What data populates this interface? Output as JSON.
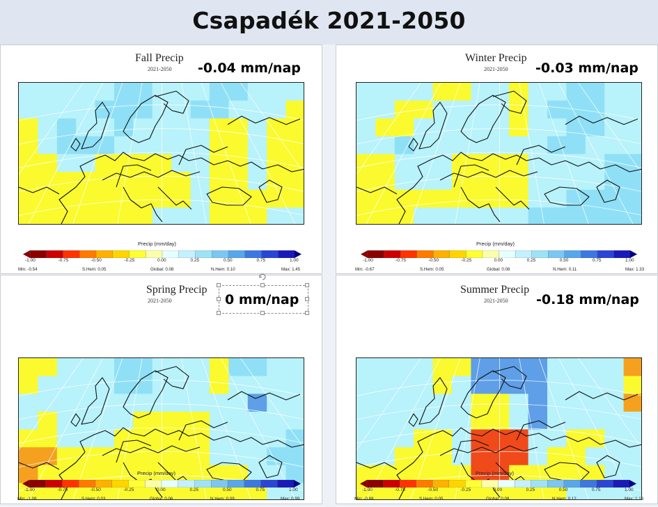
{
  "title": "Csapadék 2021-2050",
  "colorbar": {
    "title": "Precip (mm/day)",
    "ticks": [
      "-1.00",
      "-0.75",
      "-0.50",
      "-0.25",
      "0.00",
      "0.25",
      "0.50",
      "0.75",
      "1.00"
    ],
    "colors": [
      "#8b0000",
      "#cc0000",
      "#ff3300",
      "#ff7a00",
      "#ffb000",
      "#ffd500",
      "#ffff33",
      "#fbffaa",
      "#e6ffff",
      "#c4f0ff",
      "#9ee2f7",
      "#7cc7f2",
      "#58a6ec",
      "#3d78e0",
      "#2a45d4",
      "#1a1ab8"
    ],
    "arrow_low": "#8b0000",
    "arrow_high": "#000080"
  },
  "panels": [
    {
      "id": "fall",
      "title": "Fall Precip",
      "subtitle": "2021-2050",
      "value_label": "-0.04 mm/nap",
      "stats": {
        "min": "Min: -0.54",
        "shem": "S.Hem: 0.05",
        "global": "Global: 0.08",
        "nhem": "N.Hem: 0.10",
        "max": "Max: 1.45"
      },
      "grid": [
        "BBBBBCCBBBCCBBB",
        "BBBBCCCBBCCBBBY",
        "YBCBBCBBBBYYBYY",
        "YBCCCBBBBBYYBYY",
        "YYBBYYYYBBYYBYY",
        "YYYYYYYYYBYYBYY",
        "YYYYYYYYYBYYYYY",
        "YYYYYYYBBBYYYBB"
      ]
    },
    {
      "id": "winter",
      "title": "Winter Precip",
      "subtitle": "2021-2050",
      "value_label": "-0.03 mm/nap",
      "stats": {
        "min": "Min: -0.67",
        "shem": "S.Hem: 0.05",
        "global": "Global: 0.08",
        "nhem": "N.Hem: 0.11",
        "max": "Max: 1.33"
      },
      "grid": [
        "BBBBYYBBYBBCCBB",
        "BBYYBBBBYBCCCBB",
        "BYYBBBBBYBBCCBB",
        "BBCBBBBBBBCCBBB",
        "YYBBBYYYYBBBBCC",
        "YYBBBYYYYBBBBCC",
        "YYYYYYYYYBBCCCC",
        "YYYBBBBBBCCCCCC"
      ]
    },
    {
      "id": "spring",
      "title": "Spring Precip",
      "subtitle": "2021-2050",
      "value_label": "0 mm/nap",
      "stats": {
        "min": "Min: -1.08",
        "shem": "S.Hem: 0.03",
        "global": "Global: 0.06",
        "nhem": "N.Hem: 0.09",
        "max": "Max: 0.99"
      },
      "grid": [
        "YYBBBCCBBBYCCBB",
        "YBBBBCCBBBYBBBB",
        "BBBBBBBBBBBBDBB",
        "BYBBBBYYYYBBBBB",
        "YYBBBYYYYYBBBBC",
        "OOYYYYYYYYBBBCC",
        "OYYYYYYYYYYYBBC",
        "YYYYYYYYYYYYYBB"
      ]
    },
    {
      "id": "summer",
      "title": "Summer Precip",
      "subtitle": "2021-2050",
      "value_label": "-0.18 mm/nap",
      "stats": {
        "min": "Min: -0.88",
        "shem": "S.Hem: 0.05",
        "global": "Global: 0.08",
        "nhem": "N.Hem: 0.12",
        "max": "Max: 1.18"
      },
      "grid": [
        "BBBBYYDDDDBBBBO",
        "BBBBYBDDDDBBBBY",
        "BBBBBBYYBDBBBBO",
        "BBBBBBYYBDBBBBB",
        "BBBYYBRRRBBYYBB",
        "BBYYYBRRRBYYBBB",
        "YYYYYYRRYYYYYBB",
        "YYYYYYYYYYYBBBB"
      ]
    }
  ]
}
